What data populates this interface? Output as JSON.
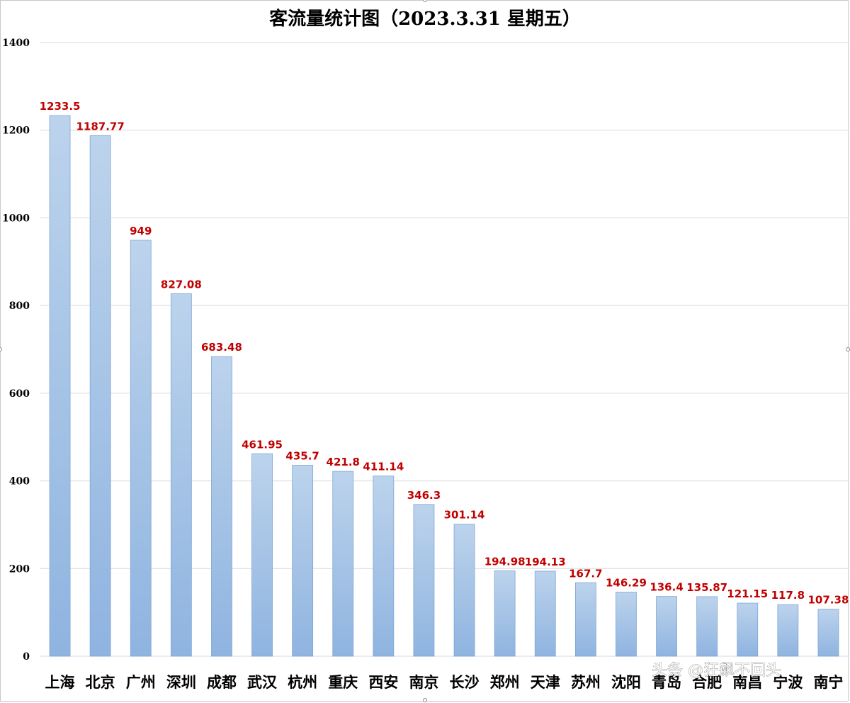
{
  "chart_data": {
    "type": "bar",
    "title": "客流量统计图（2023.3.31  星期五）",
    "xlabel": "",
    "ylabel": "",
    "ylim": [
      0,
      1400
    ],
    "yticks": [
      0,
      200,
      400,
      600,
      800,
      1000,
      1200,
      1400
    ],
    "grid": true,
    "legend": "none",
    "categories": [
      "上海",
      "北京",
      "广州",
      "深圳",
      "成都",
      "武汉",
      "杭州",
      "重庆",
      "西安",
      "南京",
      "长沙",
      "郑州",
      "天津",
      "苏州",
      "沈阳",
      "青岛",
      "合肥",
      "南昌",
      "宁波",
      "南宁"
    ],
    "values": [
      1233.5,
      1187.77,
      949,
      827.08,
      683.48,
      461.95,
      435.7,
      421.8,
      411.14,
      346.3,
      301.14,
      194.98,
      194.13,
      167.7,
      146.29,
      136.4,
      135.87,
      121.15,
      117.8,
      107.38
    ],
    "value_labels": [
      "1233.5",
      "1187.77",
      "949",
      "827.08",
      "683.48",
      "461.95",
      "435.7",
      "421.8",
      "411.14",
      "346.3",
      "301.14",
      "194.98",
      "194.13",
      "167.7",
      "146.29",
      "136.4",
      "135.87",
      "121.15",
      "117.8",
      "107.38"
    ],
    "colors": {
      "bar_top": "#bcd3ec",
      "bar_bottom": "#8fb4e0",
      "bar_stroke": "#7fa6d6",
      "value_label": "#c00000",
      "grid": "#d9d9d9"
    }
  },
  "watermark": "头条 @狂飙不回头"
}
